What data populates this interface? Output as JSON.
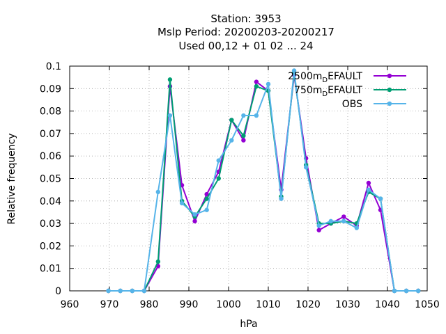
{
  "title": {
    "line1": "Station:     3953",
    "line2": "Mslp  Period: 20200203-20200217",
    "line3": "Used  00,12  + 01 02 ... 24"
  },
  "chart_data": {
    "type": "line",
    "xlabel": "hPa",
    "ylabel": "Relative frequency",
    "xlim": [
      960,
      1050
    ],
    "ylim": [
      0,
      0.1
    ],
    "xticks": [
      "960",
      "970",
      "980",
      "990",
      "1000",
      "1010",
      "1020",
      "1030",
      "1040",
      "1050"
    ],
    "yticks": [
      "0",
      "0.01",
      "0.02",
      "0.03",
      "0.04",
      "0.05",
      "0.06",
      "0.07",
      "0.08",
      "0.09",
      "0.1"
    ],
    "grid": true,
    "legend_position": "top-right",
    "x": [
      969.75,
      972.75,
      975.75,
      978.75,
      982.25,
      985.25,
      988.25,
      991.5,
      994.5,
      997.5,
      1000.75,
      1003.75,
      1007.0,
      1010.0,
      1013.25,
      1016.5,
      1019.5,
      1022.75,
      1025.75,
      1029.0,
      1032.25,
      1035.25,
      1038.25,
      1041.75,
      1044.75,
      1047.75
    ],
    "series": [
      {
        "name": "2500m_DEFAULT",
        "legend_main": "2500m",
        "legend_sub": "D",
        "legend_tail": "EFAULT",
        "color": "#9400d3",
        "values": [
          0,
          0,
          0,
          0,
          0.011,
          0.091,
          0.047,
          0.031,
          0.043,
          0.053,
          0.076,
          0.067,
          0.093,
          0.089,
          0.045,
          0.096,
          0.059,
          0.027,
          0.03,
          0.033,
          0.029,
          0.048,
          0.036,
          0,
          0,
          0
        ]
      },
      {
        "name": "750m_DEFAULT",
        "legend_main": "750m",
        "legend_sub": "D",
        "legend_tail": "EFAULT",
        "color": "#009e73",
        "values": [
          0,
          0,
          0,
          0,
          0.013,
          0.094,
          0.04,
          0.033,
          0.041,
          0.05,
          0.076,
          0.069,
          0.091,
          0.089,
          0.042,
          0.097,
          0.056,
          0.03,
          0.03,
          0.031,
          0.03,
          0.044,
          0.041,
          0,
          0,
          0
        ]
      },
      {
        "name": "OBS",
        "legend_main": "OBS",
        "legend_sub": "",
        "legend_tail": "",
        "color": "#56b4e9",
        "values": [
          0,
          0,
          0,
          0,
          0.044,
          0.078,
          0.039,
          0.034,
          0.036,
          0.058,
          0.067,
          0.078,
          0.078,
          0.092,
          0.041,
          0.098,
          0.055,
          0.029,
          0.031,
          0.031,
          0.028,
          0.045,
          0.041,
          0,
          0,
          0
        ]
      }
    ]
  }
}
